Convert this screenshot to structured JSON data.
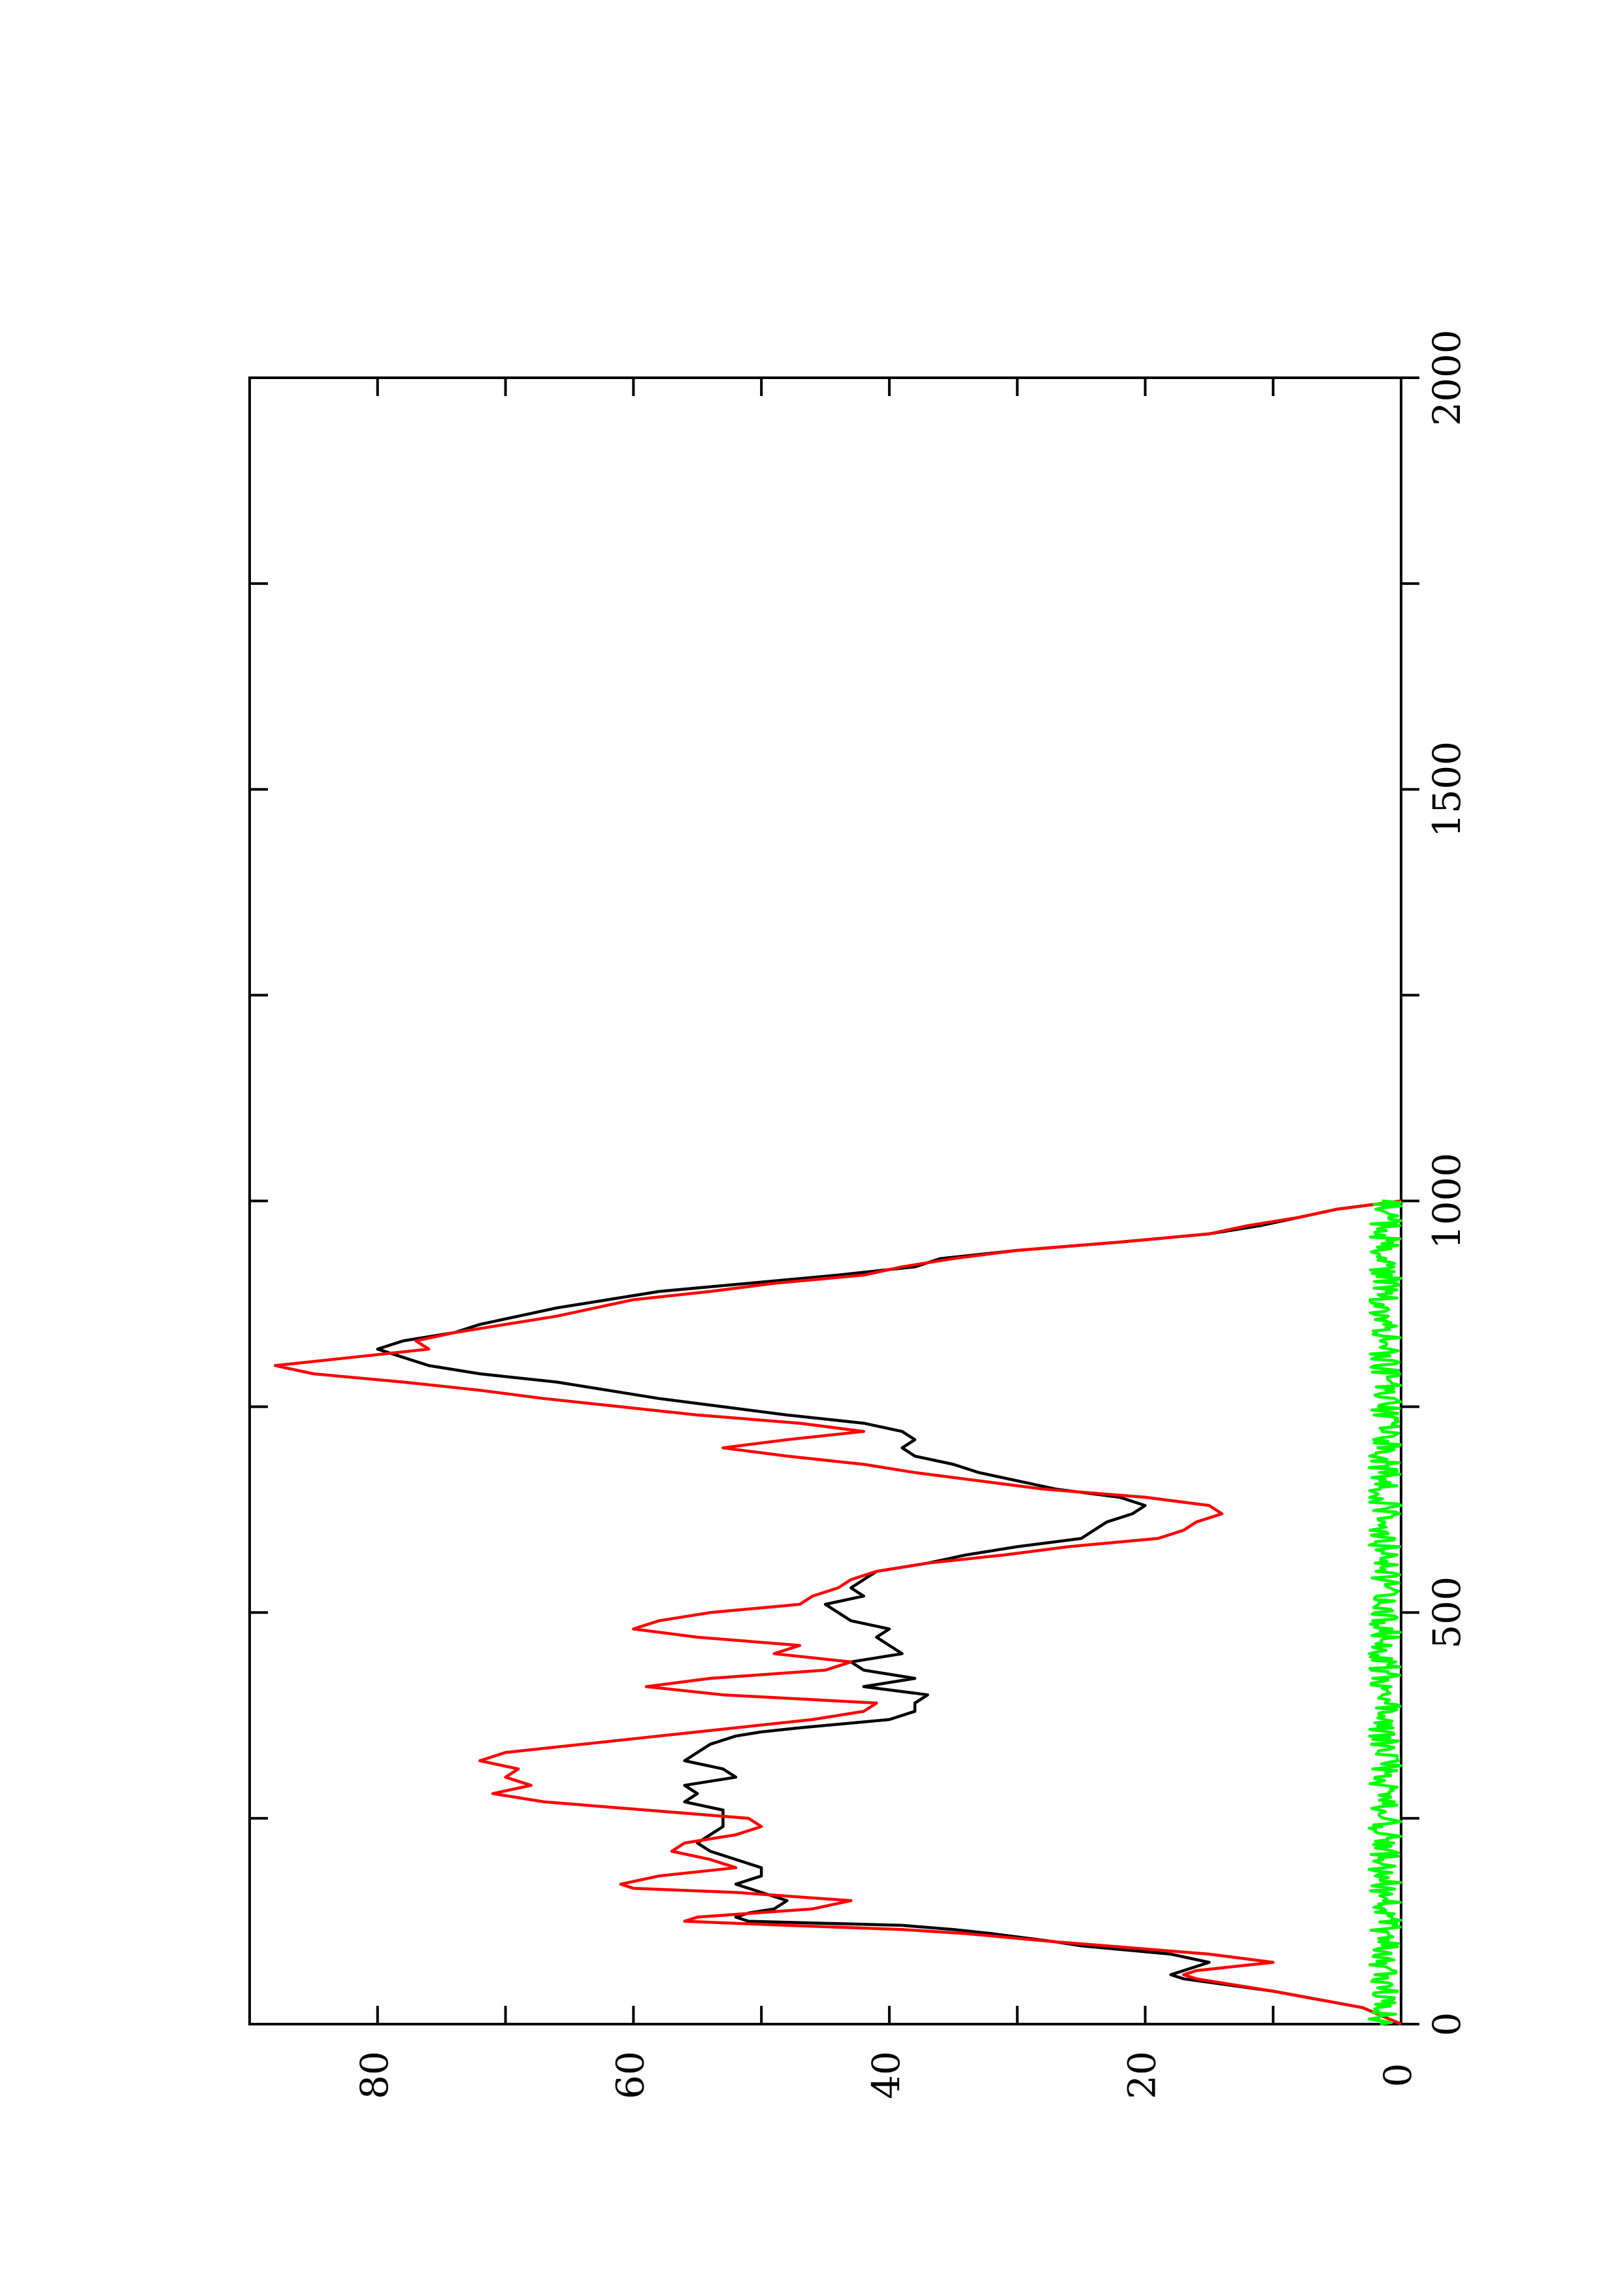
{
  "chart_data": {
    "type": "line",
    "orientation": "rotated-90-ccw",
    "title": "",
    "xlabel": "",
    "ylabel": "",
    "xlim": [
      0,
      2000
    ],
    "ylim": [
      0,
      90
    ],
    "x_ticks": [
      {
        "value": 0,
        "label": "0"
      },
      {
        "value": 500,
        "label": "500"
      },
      {
        "value": 1000,
        "label": "1000"
      },
      {
        "value": 1500,
        "label": "1500"
      },
      {
        "value": 2000,
        "label": "2000"
      }
    ],
    "x_minor_ticks": [
      250,
      750,
      1250,
      1750
    ],
    "y_ticks": [
      {
        "value": 0,
        "label": "0"
      },
      {
        "value": 20,
        "label": "20"
      },
      {
        "value": 40,
        "label": "40"
      },
      {
        "value": 60,
        "label": "60"
      },
      {
        "value": 80,
        "label": "80"
      }
    ],
    "y_minor_ticks": [
      10,
      30,
      50,
      70
    ],
    "grid": false,
    "legend": "none",
    "series": [
      {
        "color": "#000000",
        "points": [
          [
            0,
            0
          ],
          [
            20,
            3
          ],
          [
            40,
            10
          ],
          [
            55,
            17
          ],
          [
            60,
            18
          ],
          [
            65,
            17
          ],
          [
            75,
            15
          ],
          [
            85,
            18
          ],
          [
            95,
            25
          ],
          [
            100,
            27
          ],
          [
            110,
            32
          ],
          [
            115,
            35
          ],
          [
            120,
            39
          ],
          [
            125,
            51
          ],
          [
            130,
            52
          ],
          [
            135,
            51
          ],
          [
            140,
            49
          ],
          [
            150,
            48
          ],
          [
            160,
            50
          ],
          [
            170,
            52
          ],
          [
            180,
            50
          ],
          [
            190,
            50
          ],
          [
            200,
            52
          ],
          [
            210,
            54
          ],
          [
            220,
            55
          ],
          [
            230,
            54
          ],
          [
            240,
            53
          ],
          [
            250,
            53
          ],
          [
            260,
            53
          ],
          [
            270,
            56
          ],
          [
            280,
            55
          ],
          [
            290,
            56
          ],
          [
            300,
            52
          ],
          [
            310,
            53
          ],
          [
            320,
            56
          ],
          [
            330,
            55
          ],
          [
            340,
            54
          ],
          [
            350,
            52
          ],
          [
            355,
            50
          ],
          [
            360,
            47
          ],
          [
            370,
            40
          ],
          [
            380,
            38
          ],
          [
            390,
            38
          ],
          [
            400,
            37
          ],
          [
            410,
            42
          ],
          [
            420,
            38
          ],
          [
            430,
            42
          ],
          [
            440,
            43
          ],
          [
            450,
            39
          ],
          [
            460,
            40
          ],
          [
            470,
            41
          ],
          [
            480,
            40
          ],
          [
            490,
            43
          ],
          [
            500,
            44
          ],
          [
            510,
            45
          ],
          [
            520,
            42
          ],
          [
            530,
            43
          ],
          [
            540,
            42
          ],
          [
            550,
            41
          ],
          [
            560,
            37
          ],
          [
            570,
            34
          ],
          [
            580,
            30
          ],
          [
            590,
            25
          ],
          [
            600,
            24
          ],
          [
            610,
            23
          ],
          [
            620,
            21
          ],
          [
            630,
            20
          ],
          [
            640,
            22
          ],
          [
            650,
            27
          ],
          [
            660,
            30
          ],
          [
            670,
            33
          ],
          [
            680,
            35
          ],
          [
            690,
            38
          ],
          [
            700,
            39
          ],
          [
            710,
            38
          ],
          [
            720,
            39
          ],
          [
            730,
            42
          ],
          [
            740,
            48
          ],
          [
            750,
            53
          ],
          [
            760,
            58
          ],
          [
            770,
            62
          ],
          [
            780,
            66
          ],
          [
            790,
            72
          ],
          [
            800,
            76
          ],
          [
            810,
            78
          ],
          [
            820,
            80
          ],
          [
            830,
            78
          ],
          [
            840,
            74
          ],
          [
            850,
            72
          ],
          [
            860,
            69
          ],
          [
            870,
            66
          ],
          [
            880,
            62
          ],
          [
            890,
            58
          ],
          [
            900,
            51
          ],
          [
            910,
            44
          ],
          [
            920,
            38
          ],
          [
            930,
            36
          ],
          [
            940,
            30
          ],
          [
            950,
            22
          ],
          [
            960,
            15
          ],
          [
            970,
            11
          ],
          [
            980,
            8
          ],
          [
            990,
            5
          ],
          [
            1000,
            0
          ]
        ]
      },
      {
        "color": "#ff0000",
        "points": [
          [
            0,
            0
          ],
          [
            20,
            3
          ],
          [
            40,
            10
          ],
          [
            55,
            16
          ],
          [
            60,
            17
          ],
          [
            65,
            16
          ],
          [
            75,
            10
          ],
          [
            85,
            15
          ],
          [
            95,
            23
          ],
          [
            100,
            27
          ],
          [
            110,
            34
          ],
          [
            115,
            39
          ],
          [
            120,
            48
          ],
          [
            125,
            56
          ],
          [
            130,
            55
          ],
          [
            140,
            46
          ],
          [
            150,
            43
          ],
          [
            160,
            52
          ],
          [
            165,
            60
          ],
          [
            170,
            61
          ],
          [
            180,
            58
          ],
          [
            190,
            52
          ],
          [
            200,
            54
          ],
          [
            210,
            57
          ],
          [
            220,
            56
          ],
          [
            230,
            52
          ],
          [
            240,
            50
          ],
          [
            250,
            51
          ],
          [
            260,
            59
          ],
          [
            270,
            67
          ],
          [
            280,
            71
          ],
          [
            290,
            68
          ],
          [
            300,
            70
          ],
          [
            310,
            69
          ],
          [
            320,
            72
          ],
          [
            330,
            70
          ],
          [
            340,
            64
          ],
          [
            350,
            58
          ],
          [
            360,
            52
          ],
          [
            370,
            46
          ],
          [
            380,
            42
          ],
          [
            390,
            41
          ],
          [
            400,
            53
          ],
          [
            410,
            59
          ],
          [
            420,
            54
          ],
          [
            430,
            45
          ],
          [
            440,
            43
          ],
          [
            450,
            49
          ],
          [
            460,
            47
          ],
          [
            470,
            55
          ],
          [
            480,
            60
          ],
          [
            490,
            58
          ],
          [
            500,
            54
          ],
          [
            510,
            47
          ],
          [
            520,
            46
          ],
          [
            530,
            44
          ],
          [
            540,
            43
          ],
          [
            550,
            41
          ],
          [
            560,
            37
          ],
          [
            570,
            31
          ],
          [
            580,
            26
          ],
          [
            590,
            19
          ],
          [
            600,
            17
          ],
          [
            610,
            16
          ],
          [
            620,
            14
          ],
          [
            630,
            15
          ],
          [
            640,
            20
          ],
          [
            650,
            28
          ],
          [
            660,
            33
          ],
          [
            670,
            38
          ],
          [
            680,
            42
          ],
          [
            690,
            48
          ],
          [
            700,
            53
          ],
          [
            710,
            48
          ],
          [
            720,
            42
          ],
          [
            730,
            47
          ],
          [
            740,
            55
          ],
          [
            750,
            61
          ],
          [
            760,
            67
          ],
          [
            770,
            72
          ],
          [
            780,
            78
          ],
          [
            790,
            85
          ],
          [
            800,
            88
          ],
          [
            810,
            82
          ],
          [
            820,
            76
          ],
          [
            830,
            77
          ],
          [
            840,
            74
          ],
          [
            850,
            70
          ],
          [
            860,
            66
          ],
          [
            870,
            63
          ],
          [
            880,
            60
          ],
          [
            890,
            54
          ],
          [
            900,
            49
          ],
          [
            910,
            42
          ],
          [
            920,
            39
          ],
          [
            930,
            35
          ],
          [
            940,
            30
          ],
          [
            950,
            22
          ],
          [
            960,
            15
          ],
          [
            970,
            12
          ],
          [
            980,
            8
          ],
          [
            990,
            5
          ],
          [
            1000,
            0
          ]
        ]
      },
      {
        "color": "#00ff00",
        "noise": {
          "x_from": 0,
          "x_to": 1000,
          "y_max": 2.5,
          "step": 2
        }
      }
    ]
  }
}
